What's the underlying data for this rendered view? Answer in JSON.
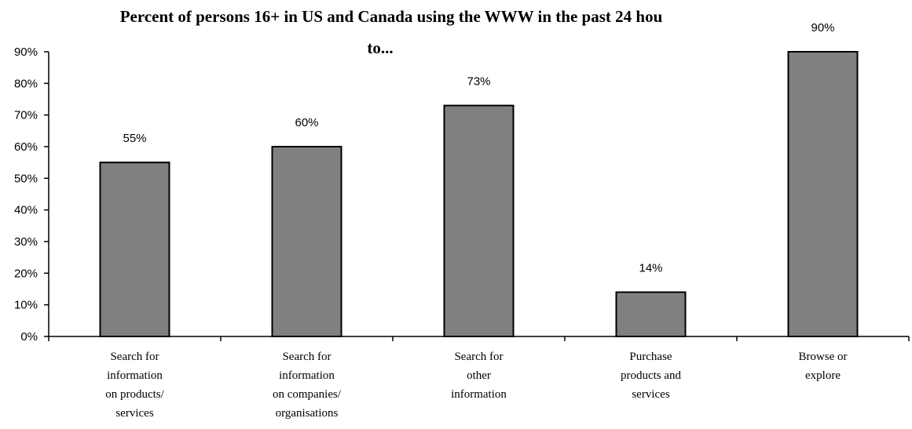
{
  "chart_data": {
    "type": "bar",
    "title_lines": [
      "Percent of persons 16+ in US and Canada using the WWW in the past 24 hou",
      "to..."
    ],
    "categories": [
      [
        "Search for",
        "information",
        "on products/",
        "services"
      ],
      [
        "Search for",
        "information",
        "on companies/",
        "organisations"
      ],
      [
        "Search for",
        "other",
        "information"
      ],
      [
        "Purchase",
        "products and",
        "services"
      ],
      [
        "Browse or",
        "explore"
      ]
    ],
    "values": [
      55,
      60,
      73,
      14,
      90
    ],
    "data_labels": [
      "55%",
      "60%",
      "73%",
      "14%",
      "90%"
    ],
    "y_ticks": [
      "0%",
      "10%",
      "20%",
      "30%",
      "40%",
      "50%",
      "60%",
      "70%",
      "80%",
      "90%"
    ],
    "ylim": [
      0,
      90
    ],
    "grid": false,
    "legend": "none",
    "bar_color": "#808080"
  }
}
